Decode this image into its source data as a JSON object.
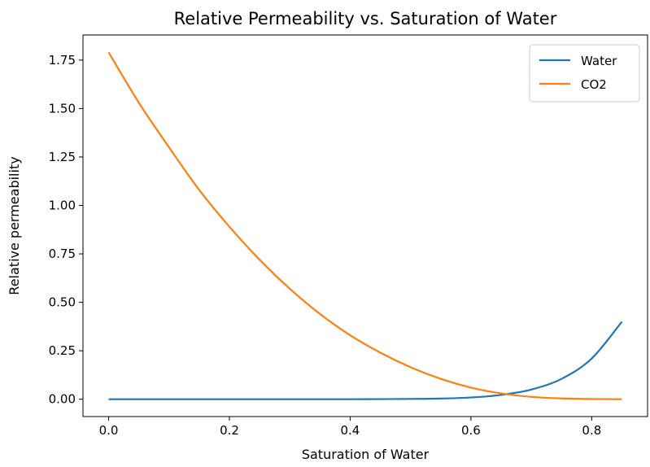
{
  "chart_data": {
    "type": "line",
    "title": "Relative Permeability vs. Saturation of Water",
    "xlabel": "Saturation of Water",
    "ylabel": "Relative permeability",
    "xlim": [
      -0.0425,
      0.8925
    ],
    "ylim": [
      -0.0895,
      1.8795
    ],
    "xticks": [
      0.0,
      0.2,
      0.4,
      0.6,
      0.8
    ],
    "xtick_labels": [
      "0.0",
      "0.2",
      "0.4",
      "0.6",
      "0.8"
    ],
    "yticks": [
      0.0,
      0.25,
      0.5,
      0.75,
      1.0,
      1.25,
      1.5,
      1.75
    ],
    "ytick_labels": [
      "0.00",
      "0.25",
      "0.50",
      "0.75",
      "1.00",
      "1.25",
      "1.50",
      "1.75"
    ],
    "grid": false,
    "legend": "upper-right",
    "x": [
      0.0,
      0.05,
      0.1,
      0.15,
      0.2,
      0.25,
      0.3,
      0.35,
      0.4,
      0.45,
      0.5,
      0.55,
      0.6,
      0.65,
      0.7,
      0.75,
      0.8,
      0.85
    ],
    "series": [
      {
        "name": "Water",
        "color": "#1f77b4",
        "values": [
          0.0,
          0.0,
          0.0,
          0.0,
          0.0,
          0.0,
          0.0,
          0.0,
          0.0,
          0.0005,
          0.0015,
          0.0035,
          0.009,
          0.022,
          0.05,
          0.105,
          0.21,
          0.4
        ]
      },
      {
        "name": "CO2",
        "color": "#ff7f0e",
        "values": [
          1.79,
          1.53,
          1.3,
          1.08,
          0.89,
          0.72,
          0.57,
          0.44,
          0.33,
          0.24,
          0.165,
          0.105,
          0.06,
          0.03,
          0.012,
          0.004,
          0.001,
          0.0
        ]
      }
    ]
  }
}
